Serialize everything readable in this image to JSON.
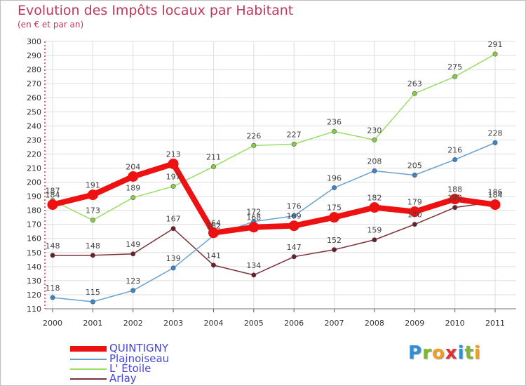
{
  "title": "Evolution des Impôts locaux par Habitant",
  "subtitle": "(en € et par an)",
  "brand": {
    "text": "Proxiti",
    "letters": [
      "P",
      "r",
      "o",
      "x",
      "i",
      "t",
      "i"
    ],
    "letter_colors": [
      "#2e8fd8",
      "#7cb832",
      "#f0a020",
      "#e03030",
      "#2e8fd8",
      "#7cb832",
      "#f0a020"
    ]
  },
  "chart_data": {
    "type": "line",
    "title": "Evolution des Impôts locaux par Habitant",
    "subtitle": "(en € et par an)",
    "xlabel": "",
    "ylabel": "",
    "ylim": [
      110,
      300
    ],
    "ytick_step": 10,
    "grid": true,
    "legend_position": "bottom-left",
    "categories": [
      "2000",
      "2001",
      "2002",
      "2003",
      "2004",
      "2005",
      "2006",
      "2007",
      "2008",
      "2009",
      "2010",
      "2011"
    ],
    "series": [
      {
        "name": "QUINTIGNY",
        "color": "#ee1111",
        "marker": "#ee1111",
        "labels_above": true,
        "values": [
          184,
          191,
          204,
          213,
          164,
          168,
          169,
          175,
          182,
          179,
          188,
          184
        ]
      },
      {
        "name": "Plainoiseau",
        "color": "#6aa0d0",
        "marker": "#3a86c8",
        "labels_above": true,
        "values": [
          118,
          115,
          123,
          139,
          162,
          172,
          176,
          196,
          208,
          205,
          216,
          228
        ]
      },
      {
        "name": "L' Étoile",
        "color": "#99dd66",
        "marker": "#88cc44",
        "labels_above": true,
        "values": [
          187,
          173,
          189,
          197,
          211,
          226,
          227,
          236,
          230,
          263,
          275,
          291
        ]
      },
      {
        "name": "Arlay",
        "color": "#7a3038",
        "marker": "#6a1f28",
        "labels_above": true,
        "values": [
          148,
          148,
          149,
          167,
          141,
          134,
          147,
          152,
          159,
          170,
          182,
          186
        ]
      }
    ]
  }
}
